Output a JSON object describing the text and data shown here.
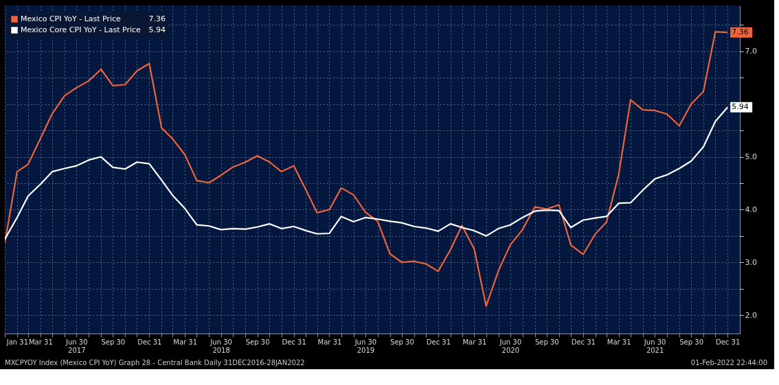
{
  "chart_data": {
    "type": "line",
    "x": [
      "2016-12-31",
      "2017-01-31",
      "2017-02-28",
      "2017-03-31",
      "2017-04-30",
      "2017-05-31",
      "2017-06-30",
      "2017-07-31",
      "2017-08-31",
      "2017-09-30",
      "2017-10-31",
      "2017-11-30",
      "2017-12-31",
      "2018-01-31",
      "2018-02-28",
      "2018-03-31",
      "2018-04-30",
      "2018-05-31",
      "2018-06-30",
      "2018-07-31",
      "2018-08-31",
      "2018-09-30",
      "2018-10-31",
      "2018-11-30",
      "2018-12-31",
      "2019-01-31",
      "2019-02-28",
      "2019-03-31",
      "2019-04-30",
      "2019-05-31",
      "2019-06-30",
      "2019-07-31",
      "2019-08-31",
      "2019-09-30",
      "2019-10-31",
      "2019-11-30",
      "2019-12-31",
      "2020-01-31",
      "2020-02-29",
      "2020-03-31",
      "2020-04-30",
      "2020-05-31",
      "2020-06-30",
      "2020-07-31",
      "2020-08-31",
      "2020-09-30",
      "2020-10-31",
      "2020-11-30",
      "2020-12-31",
      "2021-01-31",
      "2021-02-28",
      "2021-03-31",
      "2021-04-30",
      "2021-05-31",
      "2021-06-30",
      "2021-07-31",
      "2021-08-31",
      "2021-09-30",
      "2021-10-31",
      "2021-11-30",
      "2021-12-31"
    ],
    "series": [
      {
        "name": "Mexico CPI YoY - Last Price",
        "color": "#f0643a",
        "values": [
          3.36,
          4.72,
          4.86,
          5.35,
          5.82,
          6.16,
          6.31,
          6.44,
          6.66,
          6.35,
          6.37,
          6.63,
          6.77,
          5.55,
          5.34,
          5.04,
          4.55,
          4.51,
          4.65,
          4.81,
          4.9,
          5.02,
          4.9,
          4.72,
          4.83,
          4.37,
          3.94,
          4.0,
          4.41,
          4.28,
          3.95,
          3.78,
          3.16,
          3.0,
          3.02,
          2.97,
          2.83,
          3.24,
          3.7,
          3.25,
          2.17,
          2.84,
          3.33,
          3.62,
          4.05,
          4.01,
          4.09,
          3.33,
          3.15,
          3.54,
          3.76,
          4.67,
          6.08,
          5.89,
          5.88,
          5.81,
          5.59,
          6.0,
          6.24,
          7.37,
          7.36
        ],
        "value_labels": [
          null,
          null,
          null,
          null,
          null,
          null,
          null,
          null,
          null,
          null,
          null,
          null,
          null,
          null,
          null,
          null,
          null,
          null,
          null,
          null,
          null,
          null,
          null,
          null,
          null,
          null,
          null,
          null,
          null,
          null,
          null,
          null,
          null,
          null,
          null,
          null,
          null,
          null,
          null,
          null,
          null,
          null,
          null,
          null,
          null,
          null,
          null,
          null,
          null,
          null,
          null,
          null,
          null,
          null,
          null,
          null,
          null,
          null,
          null,
          null,
          "7.36"
        ]
      },
      {
        "name": "Mexico Core CPI YoY - Last Price",
        "color": "#ffffff",
        "values": [
          3.44,
          3.85,
          4.26,
          4.48,
          4.72,
          4.78,
          4.83,
          4.94,
          5.0,
          4.8,
          4.77,
          4.9,
          4.87,
          4.56,
          4.27,
          4.02,
          3.71,
          3.69,
          3.62,
          3.64,
          3.63,
          3.67,
          3.73,
          3.64,
          3.68,
          3.6,
          3.54,
          3.55,
          3.87,
          3.77,
          3.85,
          3.82,
          3.78,
          3.75,
          3.68,
          3.65,
          3.59,
          3.73,
          3.66,
          3.6,
          3.5,
          3.64,
          3.71,
          3.85,
          3.97,
          3.99,
          3.98,
          3.66,
          3.8,
          3.84,
          3.87,
          4.12,
          4.13,
          4.37,
          4.58,
          4.66,
          4.78,
          4.92,
          5.19,
          5.67,
          5.94
        ],
        "value_labels": [
          null,
          null,
          null,
          null,
          null,
          null,
          null,
          null,
          null,
          null,
          null,
          null,
          null,
          null,
          null,
          null,
          null,
          null,
          null,
          null,
          null,
          null,
          null,
          null,
          null,
          null,
          null,
          null,
          null,
          null,
          null,
          null,
          null,
          null,
          null,
          null,
          null,
          null,
          null,
          null,
          null,
          null,
          null,
          null,
          null,
          null,
          null,
          null,
          null,
          null,
          null,
          null,
          null,
          null,
          null,
          null,
          null,
          null,
          null,
          null,
          "5.94"
        ]
      }
    ],
    "xlim": [
      "2016-12-31",
      "2022-01-31"
    ],
    "xticks": [
      {
        "value": "2016-12-31",
        "label": null
      },
      {
        "value": "2017-01-31",
        "label": "Jan 31"
      },
      {
        "value": "2017-02-28",
        "label": null
      },
      {
        "value": "2017-03-31",
        "label": "Mar 31"
      },
      {
        "value": "2017-04-30",
        "label": null
      },
      {
        "value": "2017-05-31",
        "label": null
      },
      {
        "value": "2017-06-30",
        "label": "Jun 30\n2017"
      },
      {
        "value": "2017-07-31",
        "label": null
      },
      {
        "value": "2017-08-31",
        "label": null
      },
      {
        "value": "2017-09-30",
        "label": "Sep 30"
      },
      {
        "value": "2017-10-31",
        "label": null
      },
      {
        "value": "2017-11-30",
        "label": null
      },
      {
        "value": "2017-12-31",
        "label": "Dec 31"
      },
      {
        "value": "2018-01-31",
        "label": null
      },
      {
        "value": "2018-02-28",
        "label": null
      },
      {
        "value": "2018-03-31",
        "label": "Mar 31"
      },
      {
        "value": "2018-04-30",
        "label": null
      },
      {
        "value": "2018-05-31",
        "label": null
      },
      {
        "value": "2018-06-30",
        "label": "Jun 30\n2018"
      },
      {
        "value": "2018-07-31",
        "label": null
      },
      {
        "value": "2018-08-31",
        "label": null
      },
      {
        "value": "2018-09-30",
        "label": "Sep 30"
      },
      {
        "value": "2018-10-31",
        "label": null
      },
      {
        "value": "2018-11-30",
        "label": null
      },
      {
        "value": "2018-12-31",
        "label": "Dec 31"
      },
      {
        "value": "2019-01-31",
        "label": null
      },
      {
        "value": "2019-02-28",
        "label": null
      },
      {
        "value": "2019-03-31",
        "label": "Mar 31"
      },
      {
        "value": "2019-04-30",
        "label": null
      },
      {
        "value": "2019-05-31",
        "label": null
      },
      {
        "value": "2019-06-30",
        "label": "Jun 30\n2019"
      },
      {
        "value": "2019-07-31",
        "label": null
      },
      {
        "value": "2019-08-31",
        "label": null
      },
      {
        "value": "2019-09-30",
        "label": "Sep 30"
      },
      {
        "value": "2019-10-31",
        "label": null
      },
      {
        "value": "2019-11-30",
        "label": null
      },
      {
        "value": "2019-12-31",
        "label": "Dec 31"
      },
      {
        "value": "2020-01-31",
        "label": null
      },
      {
        "value": "2020-02-29",
        "label": null
      },
      {
        "value": "2020-03-31",
        "label": "Mar 31"
      },
      {
        "value": "2020-04-30",
        "label": null
      },
      {
        "value": "2020-05-31",
        "label": null
      },
      {
        "value": "2020-06-30",
        "label": "Jun 30\n2020"
      },
      {
        "value": "2020-07-31",
        "label": null
      },
      {
        "value": "2020-08-31",
        "label": null
      },
      {
        "value": "2020-09-30",
        "label": "Sep 30"
      },
      {
        "value": "2020-10-31",
        "label": null
      },
      {
        "value": "2020-11-30",
        "label": null
      },
      {
        "value": "2020-12-31",
        "label": "Dec 31"
      },
      {
        "value": "2021-01-31",
        "label": null
      },
      {
        "value": "2021-02-28",
        "label": null
      },
      {
        "value": "2021-03-31",
        "label": "Mar 31"
      },
      {
        "value": "2021-04-30",
        "label": null
      },
      {
        "value": "2021-05-31",
        "label": null
      },
      {
        "value": "2021-06-30",
        "label": "Jun 30\n2021"
      },
      {
        "value": "2021-07-31",
        "label": null
      },
      {
        "value": "2021-08-31",
        "label": null
      },
      {
        "value": "2021-09-30",
        "label": "Sep 30"
      },
      {
        "value": "2021-10-31",
        "label": null
      },
      {
        "value": "2021-11-30",
        "label": null
      },
      {
        "value": "2021-12-31",
        "label": "Dec 31"
      }
    ],
    "ylim": [
      1.65,
      7.87
    ],
    "yticks": [
      {
        "value": 2,
        "label": "2.0"
      },
      {
        "value": 2.5,
        "label": null
      },
      {
        "value": 3,
        "label": "3.0"
      },
      {
        "value": 3.5,
        "label": null
      },
      {
        "value": 4,
        "label": "4.0"
      },
      {
        "value": 4.5,
        "label": null
      },
      {
        "value": 5,
        "label": "5.0"
      },
      {
        "value": 5.5,
        "label": null
      },
      {
        "value": 6,
        "label": null
      },
      {
        "value": 6.5,
        "label": null
      },
      {
        "value": 7,
        "label": "7.0"
      },
      {
        "value": 7.5,
        "label": null
      }
    ],
    "grid": true,
    "legend": "top left",
    "line_style": "solid",
    "marker": "none",
    "annotations": [
      "MXCPYOY Index (Mexico CPI YoY) Graph 28 - Central Bank  Daily 31DEC2016-28JAN2022",
      "01-Feb-2022 22:44:00"
    ]
  }
}
